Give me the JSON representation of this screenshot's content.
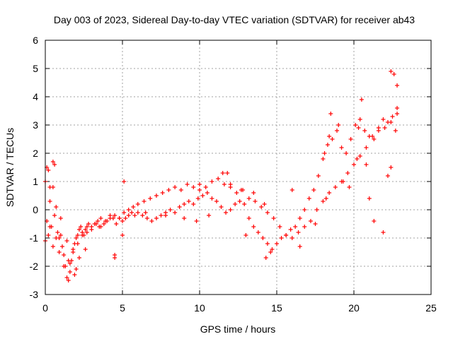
{
  "chart_data": {
    "type": "scatter",
    "title": "Day 003 of 2023, Sidereal Day-to-day VTEC variation (SDTVAR) for receiver ab43",
    "xlabel": "GPS time / hours",
    "ylabel": "SDTVAR / TECUs",
    "xlim": [
      0,
      25
    ],
    "ylim": [
      -3,
      6
    ],
    "xticks": [
      "0",
      "5",
      "10",
      "15",
      "20",
      "25"
    ],
    "yticks": [
      "-3",
      "-2",
      "-1",
      "0",
      "1",
      "2",
      "3",
      "4",
      "5",
      "6"
    ],
    "grid": true,
    "marker": "plus",
    "series_color": "#ff0000",
    "series": [
      {
        "name": "SDTVAR",
        "x": [
          0.0,
          0.1,
          0.2,
          0.3,
          0.4,
          0.5,
          0.6,
          0.7,
          0.8,
          0.9,
          1.0,
          1.1,
          1.2,
          1.3,
          1.4,
          1.5,
          1.6,
          1.7,
          1.8,
          1.9,
          2.0,
          2.1,
          2.2,
          2.3,
          2.4,
          2.5,
          2.6,
          2.7,
          2.8,
          3.0,
          3.2,
          3.4,
          3.6,
          3.8,
          4.0,
          4.2,
          4.4,
          4.6,
          4.8,
          5.0,
          5.2,
          5.4,
          5.6,
          5.8,
          6.0,
          6.3,
          6.6,
          6.9,
          7.2,
          7.5,
          7.8,
          8.1,
          8.4,
          8.7,
          9.0,
          9.3,
          9.6,
          9.9,
          10.2,
          10.5,
          10.8,
          11.1,
          11.4,
          11.7,
          12.0,
          12.3,
          12.6,
          12.9,
          13.2,
          13.5,
          13.8,
          14.1,
          14.4,
          14.7,
          15.0,
          15.3,
          15.6,
          15.9,
          16.2,
          16.5,
          16.8,
          17.1,
          17.4,
          17.7,
          18.0,
          18.3,
          18.6,
          18.9,
          19.2,
          19.5,
          19.8,
          20.1,
          20.4,
          20.7,
          21.0,
          21.3,
          21.6,
          21.9,
          22.2,
          22.5,
          22.8,
          0.3,
          0.5,
          0.7,
          0.9,
          1.2,
          1.5,
          1.8,
          2.1,
          2.4,
          2.7,
          3.0,
          3.3,
          3.6,
          3.9,
          4.2,
          4.5,
          4.8,
          5.1,
          5.4,
          5.7,
          6.0,
          6.4,
          6.8,
          7.2,
          7.6,
          8.0,
          8.4,
          8.8,
          9.2,
          9.6,
          10.0,
          10.4,
          10.8,
          11.2,
          11.6,
          12.0,
          12.4,
          12.8,
          13.2,
          13.6,
          14.0,
          14.4,
          14.8,
          15.2,
          15.6,
          16.0,
          16.4,
          16.8,
          17.2,
          17.6,
          18.0,
          18.4,
          18.8,
          19.2,
          19.6,
          20.0,
          20.4,
          20.8,
          21.2,
          21.6,
          22.0,
          22.4,
          22.8,
          0.1,
          0.3,
          0.6,
          1.0,
          1.4,
          1.9,
          2.2,
          2.6,
          3.5,
          4.5,
          5.0,
          6.5,
          7.8,
          9.0,
          9.8,
          10.6,
          11.5,
          12.0,
          12.7,
          13.5,
          14.2,
          14.6,
          16.5,
          17.5,
          18.2,
          18.5,
          19.0,
          19.7,
          20.2,
          20.5,
          20.8,
          21.3,
          21.9,
          22.4,
          22.6,
          22.8,
          0.0,
          0.2,
          0.5,
          1.6,
          2.0,
          4.5,
          5.1,
          10.0,
          11.8,
          13.0,
          14.3,
          16.0,
          18.1,
          18.4,
          19.3,
          20.3,
          21.0,
          22.2,
          22.4,
          22.7
        ],
        "y": [
          -1.1,
          -0.4,
          1.4,
          0.3,
          -0.6,
          0.8,
          -0.2,
          0.1,
          -0.8,
          -1.0,
          -0.9,
          -1.3,
          -1.6,
          -2.0,
          -2.4,
          -2.5,
          -2.2,
          -1.8,
          -1.5,
          -1.2,
          -1.0,
          -0.9,
          -0.7,
          -0.6,
          -0.8,
          -0.9,
          -0.7,
          -0.6,
          -0.5,
          -0.6,
          -0.5,
          -0.4,
          -0.3,
          -0.5,
          -0.4,
          -0.2,
          -0.3,
          -0.5,
          -0.3,
          -0.4,
          -0.3,
          -0.2,
          -0.1,
          -0.2,
          -0.1,
          -0.2,
          -0.3,
          -0.4,
          -0.3,
          -0.2,
          -0.1,
          0.0,
          -0.1,
          0.1,
          0.2,
          0.3,
          0.2,
          0.4,
          0.5,
          0.6,
          0.4,
          0.3,
          0.1,
          -0.1,
          0.0,
          0.2,
          0.3,
          0.2,
          -0.3,
          -0.6,
          -0.8,
          -1.0,
          -1.2,
          -1.4,
          -1.2,
          -1.0,
          -0.9,
          -0.7,
          -0.6,
          -0.3,
          0.0,
          0.4,
          0.7,
          1.2,
          1.8,
          2.3,
          2.5,
          2.8,
          2.2,
          2.0,
          2.5,
          3.0,
          3.2,
          2.8,
          2.6,
          2.5,
          2.9,
          3.2,
          3.1,
          3.3,
          3.6,
          -0.6,
          -1.3,
          -1.0,
          -1.5,
          -2.0,
          -1.8,
          -1.4,
          -1.2,
          -0.9,
          -0.8,
          -0.7,
          -0.5,
          -0.6,
          -0.4,
          -0.3,
          -0.2,
          -0.3,
          -0.1,
          0.0,
          0.1,
          0.2,
          0.3,
          0.4,
          0.5,
          0.6,
          0.7,
          0.8,
          0.7,
          0.9,
          0.8,
          0.7,
          0.8,
          1.0,
          1.1,
          0.9,
          0.8,
          0.6,
          0.7,
          0.4,
          0.3,
          0.1,
          -0.1,
          -0.3,
          -0.6,
          -0.9,
          -1.0,
          -0.8,
          -0.6,
          -0.4,
          0.0,
          0.3,
          0.6,
          0.8,
          1.0,
          1.3,
          1.6,
          1.9,
          2.2,
          2.6,
          2.8,
          2.9,
          3.1,
          3.4,
          1.5,
          0.8,
          1.6,
          -0.3,
          -1.1,
          -2.3,
          -1.7,
          -1.4,
          -0.6,
          -1.6,
          -0.9,
          -0.1,
          -0.2,
          -0.3,
          -0.4,
          -0.2,
          1.3,
          0.9,
          0.7,
          0.6,
          0.2,
          -1.5,
          -1.3,
          -0.5,
          0.4,
          3.4,
          3.0,
          0.8,
          1.8,
          3.9,
          1.6,
          -0.4,
          -0.8,
          1.5,
          4.8,
          4.4,
          1.0,
          -0.9,
          1.7,
          -1.9,
          -2.1,
          -1.7,
          1.0,
          0.9,
          1.3,
          -0.9,
          -1.7,
          0.7,
          2.0,
          2.6,
          1.0,
          2.9,
          0.4,
          1.2,
          4.9,
          2.8
        ]
      }
    ]
  }
}
